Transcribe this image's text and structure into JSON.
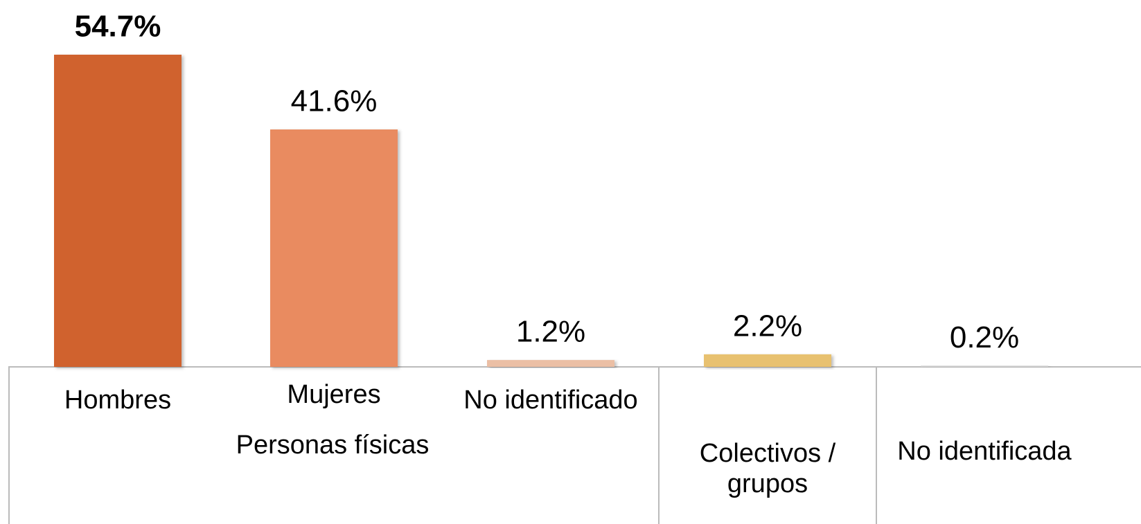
{
  "chart_data": {
    "type": "bar",
    "categories": [
      "Hombres",
      "Mujeres",
      "No identificado",
      "Colectivos / grupos",
      "No identificada"
    ],
    "values": [
      54.7,
      41.6,
      1.2,
      2.2,
      0.2
    ],
    "value_labels": [
      "54.7%",
      "41.6%",
      "1.2%",
      "2.2%",
      "0.2%"
    ],
    "colors": [
      "#d0622f",
      "#e98b60",
      "#ebbfa5",
      "#e8c170",
      "#cfcfcf"
    ],
    "group_label": "Personas físicas"
  }
}
